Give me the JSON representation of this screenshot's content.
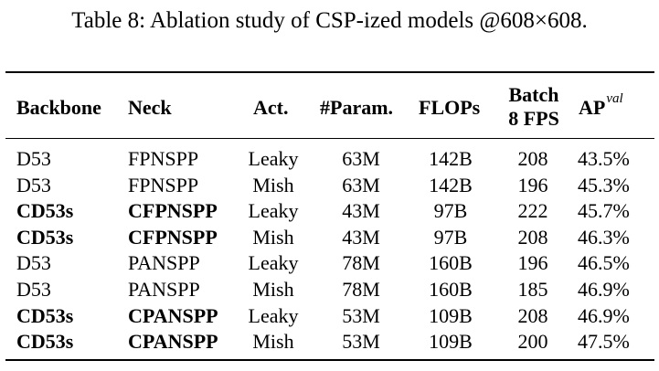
{
  "caption": "Table 8: Ablation study of CSP-ized models @608×608.",
  "headers": {
    "backbone": "Backbone",
    "neck": "Neck",
    "act": "Act.",
    "param": "#Param.",
    "flops": "FLOPs",
    "fps_line1": "Batch",
    "fps_line2": "8 FPS",
    "ap": "AP",
    "ap_sup": "val"
  },
  "rows": [
    {
      "backbone": "D53",
      "neck": "FPNSPP",
      "act": "Leaky",
      "param": "63M",
      "flops": "142B",
      "fps": "208",
      "ap": "43.5%",
      "bold": false
    },
    {
      "backbone": "D53",
      "neck": "FPNSPP",
      "act": "Mish",
      "param": "63M",
      "flops": "142B",
      "fps": "196",
      "ap": "45.3%",
      "bold": false
    },
    {
      "backbone": "CD53s",
      "neck": "CFPNSPP",
      "act": "Leaky",
      "param": "43M",
      "flops": "97B",
      "fps": "222",
      "ap": "45.7%",
      "bold": true
    },
    {
      "backbone": "CD53s",
      "neck": "CFPNSPP",
      "act": "Mish",
      "param": "43M",
      "flops": "97B",
      "fps": "208",
      "ap": "46.3%",
      "bold": true
    },
    {
      "backbone": "D53",
      "neck": "PANSPP",
      "act": "Leaky",
      "param": "78M",
      "flops": "160B",
      "fps": "196",
      "ap": "46.5%",
      "bold": false
    },
    {
      "backbone": "D53",
      "neck": "PANSPP",
      "act": "Mish",
      "param": "78M",
      "flops": "160B",
      "fps": "185",
      "ap": "46.9%",
      "bold": false
    },
    {
      "backbone": "CD53s",
      "neck": "CPANSPP",
      "act": "Leaky",
      "param": "53M",
      "flops": "109B",
      "fps": "208",
      "ap": "46.9%",
      "bold": true
    },
    {
      "backbone": "CD53s",
      "neck": "CPANSPP",
      "act": "Mish",
      "param": "53M",
      "flops": "109B",
      "fps": "200",
      "ap": "47.5%",
      "bold": true
    }
  ]
}
